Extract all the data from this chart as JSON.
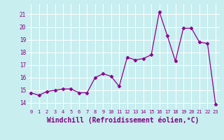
{
  "x": [
    0,
    1,
    2,
    3,
    4,
    5,
    6,
    7,
    8,
    9,
    10,
    11,
    12,
    13,
    14,
    15,
    16,
    17,
    18,
    19,
    20,
    21,
    22,
    23
  ],
  "y": [
    14.8,
    14.6,
    14.9,
    15.0,
    15.1,
    15.1,
    14.8,
    14.8,
    16.0,
    16.3,
    16.1,
    15.3,
    17.6,
    17.4,
    17.5,
    17.8,
    21.2,
    19.3,
    17.3,
    19.9,
    19.9,
    18.8,
    18.7,
    13.9
  ],
  "line_color": "#8B008B",
  "marker": "D",
  "marker_size": 2.5,
  "bg_color": "#c8eef0",
  "grid_color": "#ffffff",
  "xlabel": "Windchill (Refroidissement éolien,°C)",
  "xlabel_fontsize": 7,
  "yticks": [
    14,
    15,
    16,
    17,
    18,
    19,
    20,
    21
  ],
  "xtick_labels": [
    "0",
    "1",
    "2",
    "3",
    "4",
    "5",
    "6",
    "7",
    "8",
    "9",
    "10",
    "11",
    "12",
    "13",
    "14",
    "15",
    "16",
    "17",
    "18",
    "19",
    "20",
    "21",
    "22",
    "23"
  ],
  "ylim": [
    13.5,
    21.8
  ],
  "xlim": [
    -0.5,
    23.5
  ]
}
